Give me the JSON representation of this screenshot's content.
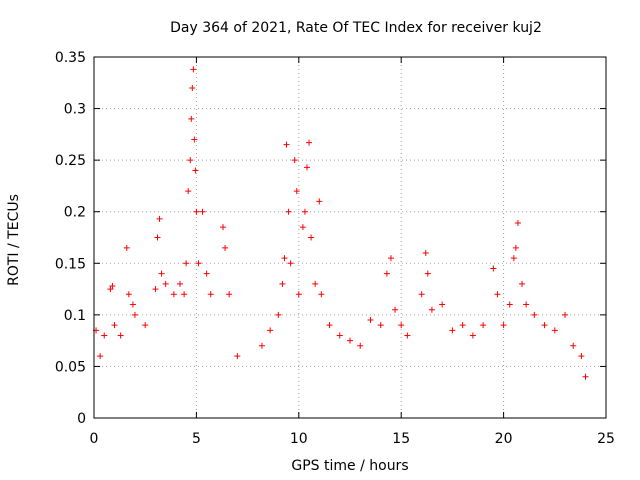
{
  "chart_data": {
    "type": "scatter",
    "title": "Day 364 of 2021, Rate Of TEC Index for receiver kuj2",
    "xlabel": "GPS time / hours",
    "ylabel": "ROTI / TECUs",
    "xlim": [
      0,
      25
    ],
    "ylim": [
      0,
      0.35
    ],
    "grid": true,
    "marker": "+",
    "color": "#ff0000",
    "xticks": [
      0,
      5,
      10,
      15,
      20,
      25
    ],
    "xtick_labels": [
      "0",
      "5",
      "10",
      "15",
      "20",
      "25"
    ],
    "yticks": [
      0,
      0.05,
      0.1,
      0.15,
      0.2,
      0.25,
      0.3,
      0.35
    ],
    "ytick_labels": [
      "0",
      "0.05",
      "0.1",
      "0.15",
      "0.2",
      "0.25",
      "0.3",
      "0.35"
    ],
    "series": [
      {
        "name": "ROTI",
        "x_range_hours": [
          0,
          24
        ],
        "points": [
          [
            0.1,
            0.085
          ],
          [
            0.3,
            0.06
          ],
          [
            0.5,
            0.08
          ],
          [
            0.8,
            0.125
          ],
          [
            0.9,
            0.128
          ],
          [
            1.0,
            0.09
          ],
          [
            1.3,
            0.08
          ],
          [
            1.6,
            0.165
          ],
          [
            1.7,
            0.12
          ],
          [
            1.9,
            0.11
          ],
          [
            2.0,
            0.1
          ],
          [
            2.5,
            0.09
          ],
          [
            3.0,
            0.125
          ],
          [
            3.1,
            0.175
          ],
          [
            3.2,
            0.193
          ],
          [
            3.3,
            0.14
          ],
          [
            3.5,
            0.13
          ],
          [
            3.9,
            0.12
          ],
          [
            4.2,
            0.13
          ],
          [
            4.4,
            0.12
          ],
          [
            4.5,
            0.15
          ],
          [
            4.6,
            0.22
          ],
          [
            4.7,
            0.25
          ],
          [
            4.75,
            0.29
          ],
          [
            4.8,
            0.32
          ],
          [
            4.85,
            0.338
          ],
          [
            4.9,
            0.27
          ],
          [
            4.95,
            0.24
          ],
          [
            5.0,
            0.2
          ],
          [
            5.1,
            0.15
          ],
          [
            5.3,
            0.2
          ],
          [
            5.5,
            0.14
          ],
          [
            5.7,
            0.12
          ],
          [
            6.3,
            0.185
          ],
          [
            6.4,
            0.165
          ],
          [
            6.6,
            0.12
          ],
          [
            7.0,
            0.06
          ],
          [
            8.2,
            0.07
          ],
          [
            8.6,
            0.085
          ],
          [
            9.0,
            0.1
          ],
          [
            9.2,
            0.13
          ],
          [
            9.3,
            0.155
          ],
          [
            9.4,
            0.265
          ],
          [
            9.5,
            0.2
          ],
          [
            9.6,
            0.15
          ],
          [
            9.8,
            0.25
          ],
          [
            9.9,
            0.22
          ],
          [
            10.0,
            0.12
          ],
          [
            10.2,
            0.185
          ],
          [
            10.3,
            0.2
          ],
          [
            10.4,
            0.243
          ],
          [
            10.5,
            0.267
          ],
          [
            10.6,
            0.175
          ],
          [
            10.8,
            0.13
          ],
          [
            11.0,
            0.21
          ],
          [
            11.1,
            0.12
          ],
          [
            11.5,
            0.09
          ],
          [
            12.0,
            0.08
          ],
          [
            12.5,
            0.075
          ],
          [
            13.0,
            0.07
          ],
          [
            13.5,
            0.095
          ],
          [
            14.0,
            0.09
          ],
          [
            14.3,
            0.14
          ],
          [
            14.5,
            0.155
          ],
          [
            14.7,
            0.105
          ],
          [
            15.0,
            0.09
          ],
          [
            15.3,
            0.08
          ],
          [
            16.0,
            0.12
          ],
          [
            16.2,
            0.16
          ],
          [
            16.3,
            0.14
          ],
          [
            16.5,
            0.105
          ],
          [
            17.0,
            0.11
          ],
          [
            17.5,
            0.085
          ],
          [
            18.0,
            0.09
          ],
          [
            18.5,
            0.08
          ],
          [
            19.0,
            0.09
          ],
          [
            19.5,
            0.145
          ],
          [
            19.7,
            0.12
          ],
          [
            20.0,
            0.09
          ],
          [
            20.3,
            0.11
          ],
          [
            20.5,
            0.155
          ],
          [
            20.6,
            0.165
          ],
          [
            20.7,
            0.189
          ],
          [
            20.9,
            0.13
          ],
          [
            21.1,
            0.11
          ],
          [
            21.5,
            0.1
          ],
          [
            22.0,
            0.09
          ],
          [
            22.5,
            0.085
          ],
          [
            23.0,
            0.1
          ],
          [
            23.4,
            0.07
          ],
          [
            23.8,
            0.06
          ],
          [
            24.0,
            0.04
          ]
        ]
      }
    ]
  }
}
